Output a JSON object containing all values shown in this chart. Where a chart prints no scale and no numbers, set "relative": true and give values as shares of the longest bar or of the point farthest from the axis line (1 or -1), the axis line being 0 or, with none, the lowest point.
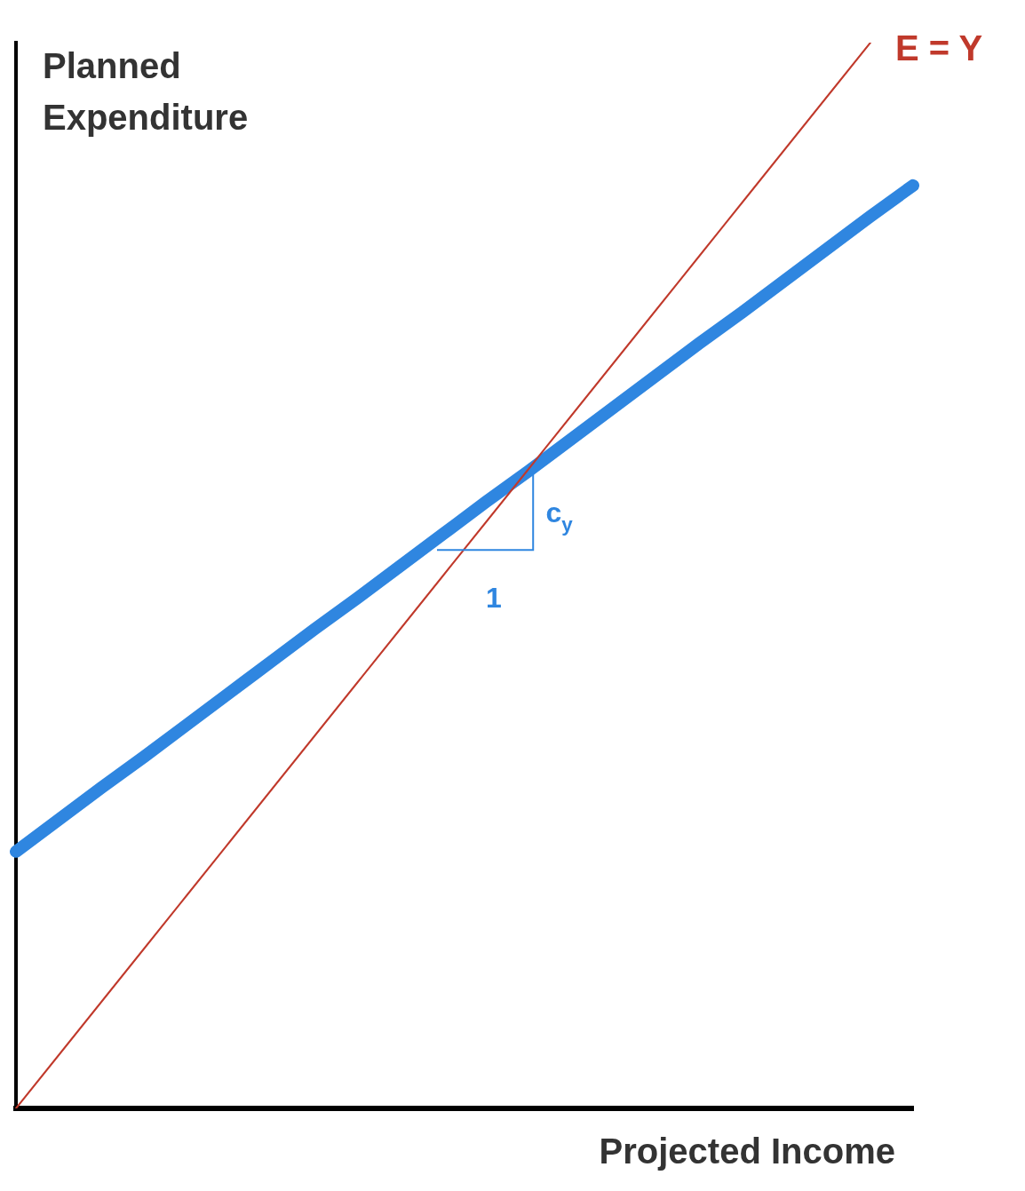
{
  "chart_data": {
    "type": "line",
    "relative": true,
    "xlabel": "Projected Income",
    "ylabel": "Planned Expenditure",
    "legend": false,
    "grid": false,
    "marker": "none",
    "categories": [
      null,
      null,
      null,
      null,
      null,
      null,
      null,
      null,
      null,
      null,
      null,
      null,
      null,
      null,
      null,
      null,
      null,
      null,
      null,
      null,
      null,
      null
    ],
    "series": [
      {
        "name": "E = Y",
        "color": "#c0392b",
        "values": [
          0,
          0.05,
          0.1,
          0.15,
          0.2,
          0.25,
          0.3,
          0.35,
          0.4,
          0.45,
          0.5,
          0.55,
          0.6,
          0.65,
          0.7,
          0.75,
          0.8,
          0.85,
          0.9,
          0.95,
          1.0,
          null
        ]
      },
      {
        "color": "#2f86e0",
        "values": [
          0.241,
          0.271,
          0.301,
          0.33,
          0.36,
          0.39,
          0.42,
          0.45,
          0.479,
          0.509,
          0.539,
          0.569,
          0.598,
          0.628,
          0.658,
          0.688,
          0.718,
          0.747,
          0.777,
          0.807,
          0.837,
          0.866
        ]
      }
    ],
    "annotations": [
      "c$_{y}$",
      "1"
    ]
  }
}
